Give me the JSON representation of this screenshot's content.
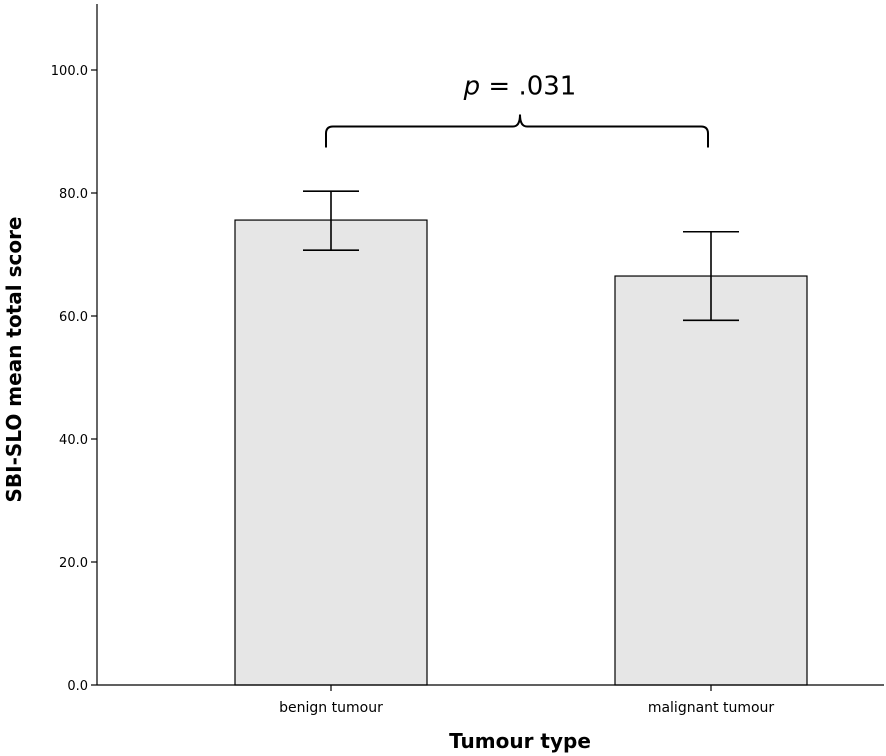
{
  "chart_data": {
    "type": "bar",
    "title": "",
    "xlabel": "Tumour type",
    "ylabel": "SBI-SLO mean total score",
    "categories": [
      "benign tumour",
      "malignant tumour"
    ],
    "values": [
      75.6,
      66.5
    ],
    "error_bars": [
      {
        "low": 70.7,
        "high": 80.3
      },
      {
        "low": 59.3,
        "high": 73.7
      }
    ],
    "ylim": [
      0,
      110
    ],
    "yticks": [
      0,
      20,
      40,
      60,
      80,
      100
    ],
    "ytick_labels": [
      "0.0",
      "20.0",
      "40.0",
      "60.0",
      "80.0",
      "100.0"
    ],
    "grid": false,
    "bar_color": "#e6e6e6",
    "annotation": {
      "p_letter": "p",
      "p_value": " = .031",
      "bracket_level": 90
    }
  }
}
